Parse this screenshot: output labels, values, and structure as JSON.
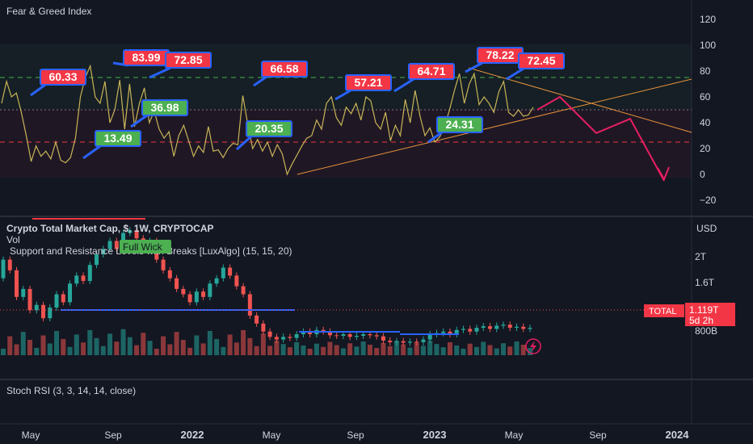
{
  "panels": {
    "fear_greed": {
      "title": "Fear & Greed Index",
      "y_ticks": [
        "120",
        "100",
        "80",
        "60",
        "40",
        "20",
        "0",
        "−20"
      ]
    },
    "market_cap": {
      "title": "Crypto Total Market Cap, $, 1W, CRYPTOCAP",
      "vol_label": "Vol",
      "indicator_label": "Support and Resistance Levels with Breaks [LuxAlgo] (15, 15, 20)",
      "full_wick_label": "Full Wick",
      "currency": "USD",
      "y_ticks": [
        "2T",
        "1.6T",
        "800B"
      ],
      "price_badge": {
        "symbol": "TOTAL",
        "value": "1.119T",
        "countdown": "5d 2h"
      }
    },
    "stoch_rsi": {
      "title": "Stoch RSI (3, 3, 14, 14, close)"
    }
  },
  "x_axis": [
    {
      "label": "May",
      "bold": false
    },
    {
      "label": "Sep",
      "bold": false
    },
    {
      "label": "2022",
      "bold": true
    },
    {
      "label": "May",
      "bold": false
    },
    {
      "label": "Sep",
      "bold": false
    },
    {
      "label": "2023",
      "bold": true
    },
    {
      "label": "May",
      "bold": false
    },
    {
      "label": "Sep",
      "bold": false
    },
    {
      "label": "2024",
      "bold": true
    }
  ],
  "colors": {
    "background": "#131722",
    "fgi_line": "#c9b458",
    "trendline": "#e8913b",
    "projection": "#e91e63",
    "greed_dash": "#4caf50",
    "fear_dash": "#f23645",
    "badge_red": "#f23645",
    "badge_green": "#4caf50",
    "badge_border": "#2962ff",
    "support_line": "#2962ff",
    "resistance_line": "#f23645",
    "candle_up": "#26a69a",
    "candle_down": "#ef5350"
  },
  "chart_data": {
    "type": "line",
    "y_range": [
      -20,
      120
    ],
    "reference_levels": [
      75,
      50,
      25
    ],
    "series": [
      {
        "values": [
          55,
          72,
          60,
          63,
          48,
          30,
          10,
          22,
          14,
          18,
          12,
          25,
          11,
          9,
          13,
          28,
          60,
          75,
          84,
          60,
          55,
          72,
          40,
          50,
          73,
          35,
          70,
          37,
          55,
          67,
          40,
          49,
          35,
          28,
          33,
          14,
          30,
          38,
          26,
          14,
          22,
          17,
          37,
          18,
          19,
          13,
          20,
          24,
          23,
          61,
          39,
          20,
          27,
          18,
          25,
          14,
          23,
          16,
          0,
          8,
          15,
          22,
          28,
          30,
          42,
          35,
          55,
          60,
          44,
          38,
          52,
          47,
          55,
          42,
          60,
          57,
          40,
          35,
          48,
          26,
          38,
          30,
          58,
          40,
          65,
          45,
          30,
          36,
          25,
          29,
          37,
          50,
          65,
          78,
          55,
          70,
          78,
          54,
          60,
          55,
          48,
          64,
          72,
          48,
          45,
          50,
          45,
          46,
          52
        ]
      }
    ],
    "badges": [
      {
        "value": "60.33",
        "kind": "high"
      },
      {
        "value": "13.49",
        "kind": "low"
      },
      {
        "value": "83.99",
        "kind": "high"
      },
      {
        "value": "36.98",
        "kind": "low"
      },
      {
        "value": "72.85",
        "kind": "high"
      },
      {
        "value": "20.35",
        "kind": "low"
      },
      {
        "value": "66.58",
        "kind": "high"
      },
      {
        "value": "57.21",
        "kind": "high"
      },
      {
        "value": "64.71",
        "kind": "high"
      },
      {
        "value": "24.31",
        "kind": "low"
      },
      {
        "value": "78.22",
        "kind": "high"
      },
      {
        "value": "72.45",
        "kind": "high"
      }
    ],
    "projection_path": [
      50,
      60,
      32,
      43,
      -5
    ],
    "market_cap_candles": [
      [
        2.05,
        2.4
      ],
      [
        2.4,
        2.2
      ],
      [
        2.2,
        1.7
      ],
      [
        1.7,
        1.85
      ],
      [
        1.85,
        1.45
      ],
      [
        1.45,
        1.55
      ],
      [
        1.55,
        1.3
      ],
      [
        1.3,
        1.5
      ],
      [
        1.5,
        1.75
      ],
      [
        1.75,
        1.6
      ],
      [
        1.6,
        1.95
      ],
      [
        1.95,
        2.1
      ],
      [
        2.1,
        2.0
      ],
      [
        2.0,
        2.3
      ],
      [
        2.3,
        2.5
      ],
      [
        2.5,
        2.6
      ],
      [
        2.6,
        2.75
      ],
      [
        2.75,
        2.6
      ],
      [
        2.6,
        2.9
      ],
      [
        2.9,
        2.95
      ],
      [
        2.95,
        2.8
      ],
      [
        2.8,
        2.7
      ],
      [
        2.7,
        2.75
      ],
      [
        2.75,
        2.4
      ],
      [
        2.4,
        2.2
      ],
      [
        2.2,
        2.05
      ],
      [
        2.05,
        1.85
      ],
      [
        1.85,
        1.75
      ],
      [
        1.75,
        1.6
      ],
      [
        1.6,
        1.8
      ],
      [
        1.8,
        1.7
      ],
      [
        1.7,
        1.95
      ],
      [
        1.95,
        2.05
      ],
      [
        2.05,
        2.25
      ],
      [
        2.25,
        2.1
      ],
      [
        2.1,
        1.9
      ],
      [
        1.9,
        1.75
      ],
      [
        1.75,
        1.35
      ],
      [
        1.35,
        1.2
      ],
      [
        1.2,
        1.05
      ],
      [
        1.05,
        0.95
      ],
      [
        0.95,
        0.9
      ],
      [
        0.9,
        0.95
      ],
      [
        0.95,
        0.93
      ],
      [
        0.93,
        1.0
      ],
      [
        1.0,
        1.05
      ],
      [
        1.05,
        1.0
      ],
      [
        1.0,
        1.08
      ],
      [
        1.08,
        1.05
      ],
      [
        1.05,
        0.98
      ],
      [
        0.98,
        0.97
      ],
      [
        0.97,
        1.0
      ],
      [
        1.0,
        0.95
      ],
      [
        0.95,
        0.97
      ],
      [
        0.97,
        1.0
      ],
      [
        1.0,
        0.98
      ],
      [
        0.98,
        0.96
      ],
      [
        0.96,
        0.88
      ],
      [
        0.88,
        0.85
      ],
      [
        0.85,
        0.87
      ],
      [
        0.87,
        0.84
      ],
      [
        0.84,
        0.86
      ],
      [
        0.86,
        0.85
      ],
      [
        0.85,
        0.9
      ],
      [
        0.9,
        1.0
      ],
      [
        1.0,
        1.02
      ],
      [
        1.02,
        1.05
      ],
      [
        1.05,
        1.0
      ],
      [
        1.0,
        1.08
      ],
      [
        1.08,
        1.1
      ],
      [
        1.1,
        1.05
      ],
      [
        1.05,
        1.12
      ],
      [
        1.12,
        1.15
      ],
      [
        1.15,
        1.1
      ],
      [
        1.1,
        1.16
      ],
      [
        1.16,
        1.18
      ],
      [
        1.18,
        1.12
      ],
      [
        1.12,
        1.14
      ],
      [
        1.14,
        1.1
      ],
      [
        1.1,
        1.12
      ]
    ]
  }
}
